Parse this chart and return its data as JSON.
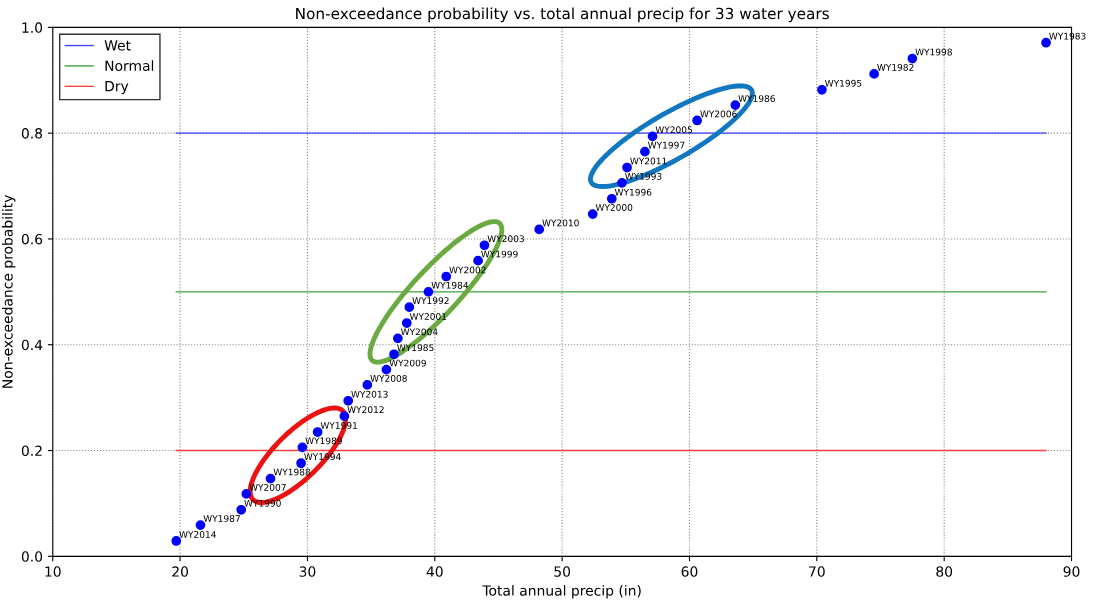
{
  "chart_data": {
    "type": "scatter",
    "title": "Non-exceedance probability vs. total annual precip for 33 water years",
    "xlabel": "Total annual precip (in)",
    "ylabel": "Non-exceedance probability",
    "series": [
      {
        "color": "#0000ff",
        "x": [
          19.7,
          21.6,
          24.8,
          25.2,
          27.1,
          29.5,
          29.6,
          30.8,
          32.9,
          33.2,
          34.7,
          36.2,
          36.8,
          37.1,
          37.8,
          38.0,
          39.5,
          40.9,
          43.4,
          43.9,
          48.2,
          52.4,
          53.9,
          54.7,
          55.1,
          56.5,
          57.1,
          60.6,
          63.6,
          70.4,
          74.5,
          77.5,
          88.0
        ],
        "values": [
          0.029,
          0.059,
          0.088,
          0.118,
          0.147,
          0.176,
          0.206,
          0.235,
          0.265,
          0.294,
          0.324,
          0.353,
          0.382,
          0.412,
          0.441,
          0.471,
          0.5,
          0.529,
          0.559,
          0.588,
          0.618,
          0.647,
          0.676,
          0.706,
          0.735,
          0.765,
          0.794,
          0.824,
          0.853,
          0.882,
          0.912,
          0.941,
          0.971
        ],
        "value_labels": [
          "WY2014",
          "WY1987",
          "WY1990",
          "WY2007",
          "WY1988",
          "WY1994",
          "WY1989",
          "WY1991",
          "WY2012",
          "WY2013",
          "WY2008",
          "WY2009",
          "WY1985",
          "WY2004",
          "WY2001",
          "WY1992",
          "WY1984",
          "WY2002",
          "WY1999",
          "WY2003",
          "WY2010",
          "WY2000",
          "WY1996",
          "WY1993",
          "WY2011",
          "WY1997",
          "WY2005",
          "WY2006",
          "WY1986",
          "WY1995",
          "WY1982",
          "WY1998",
          "WY1983"
        ]
      }
    ],
    "ref_lines": [
      {
        "axis": "y",
        "value": 0.8,
        "label": "Wet",
        "color": "#4040ff"
      },
      {
        "axis": "y",
        "value": 0.5,
        "label": "Normal",
        "color": "#40a040"
      },
      {
        "axis": "y",
        "value": 0.2,
        "label": "Dry",
        "color": "#ff4040"
      }
    ],
    "xlim": [
      10,
      90
    ],
    "xticks": [
      10,
      20,
      30,
      40,
      50,
      60,
      70,
      80,
      90
    ],
    "ylim": [
      0,
      1
    ],
    "yticks": [
      {
        "value": 0,
        "label": "0.0"
      },
      {
        "value": 0.2,
        "label": "0.2"
      },
      {
        "value": 0.4,
        "label": "0.4"
      },
      {
        "value": 0.6,
        "label": "0.6"
      },
      {
        "value": 0.8,
        "label": "0.8"
      },
      {
        "value": 1,
        "label": "1.0"
      }
    ],
    "grid": true,
    "legend": "top left",
    "marker": "circle"
  }
}
